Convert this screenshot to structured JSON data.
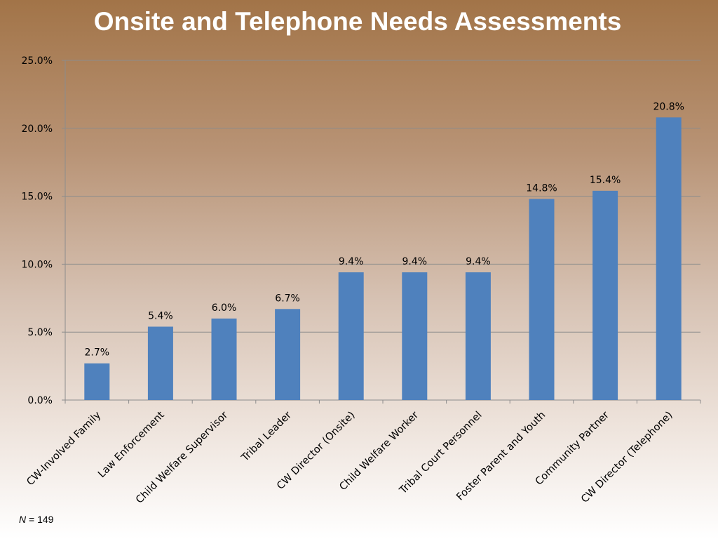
{
  "chart_data": {
    "type": "bar",
    "title": "Onsite and Telephone Needs Assessments",
    "categories": [
      "CW-Involved Family",
      "Law Enforcement",
      "Child Welfare Supervisor",
      "Tribal Leader",
      "CW Director (Onsite)",
      "Child Welfare Worker",
      "Tribal Court Personnel",
      "Foster Parent and Youth",
      "Community Partner",
      "CW Director (Telephone)"
    ],
    "values": [
      2.7,
      5.4,
      6.0,
      6.7,
      9.4,
      9.4,
      9.4,
      14.8,
      15.4,
      20.8
    ],
    "data_labels": [
      "2.7%",
      "5.4%",
      "6.0%",
      "6.7%",
      "9.4%",
      "9.4%",
      "9.4%",
      "14.8%",
      "15.4%",
      "20.8%"
    ],
    "y_ticks": [
      "0.0%",
      "5.0%",
      "10.0%",
      "15.0%",
      "20.0%",
      "25.0%"
    ],
    "ylim": [
      0,
      25
    ],
    "xlabel": "",
    "ylabel": "",
    "grid": true,
    "bar_color": "#4f81bd"
  },
  "footnote": {
    "n_label": "N",
    "n_value": " = 149"
  }
}
